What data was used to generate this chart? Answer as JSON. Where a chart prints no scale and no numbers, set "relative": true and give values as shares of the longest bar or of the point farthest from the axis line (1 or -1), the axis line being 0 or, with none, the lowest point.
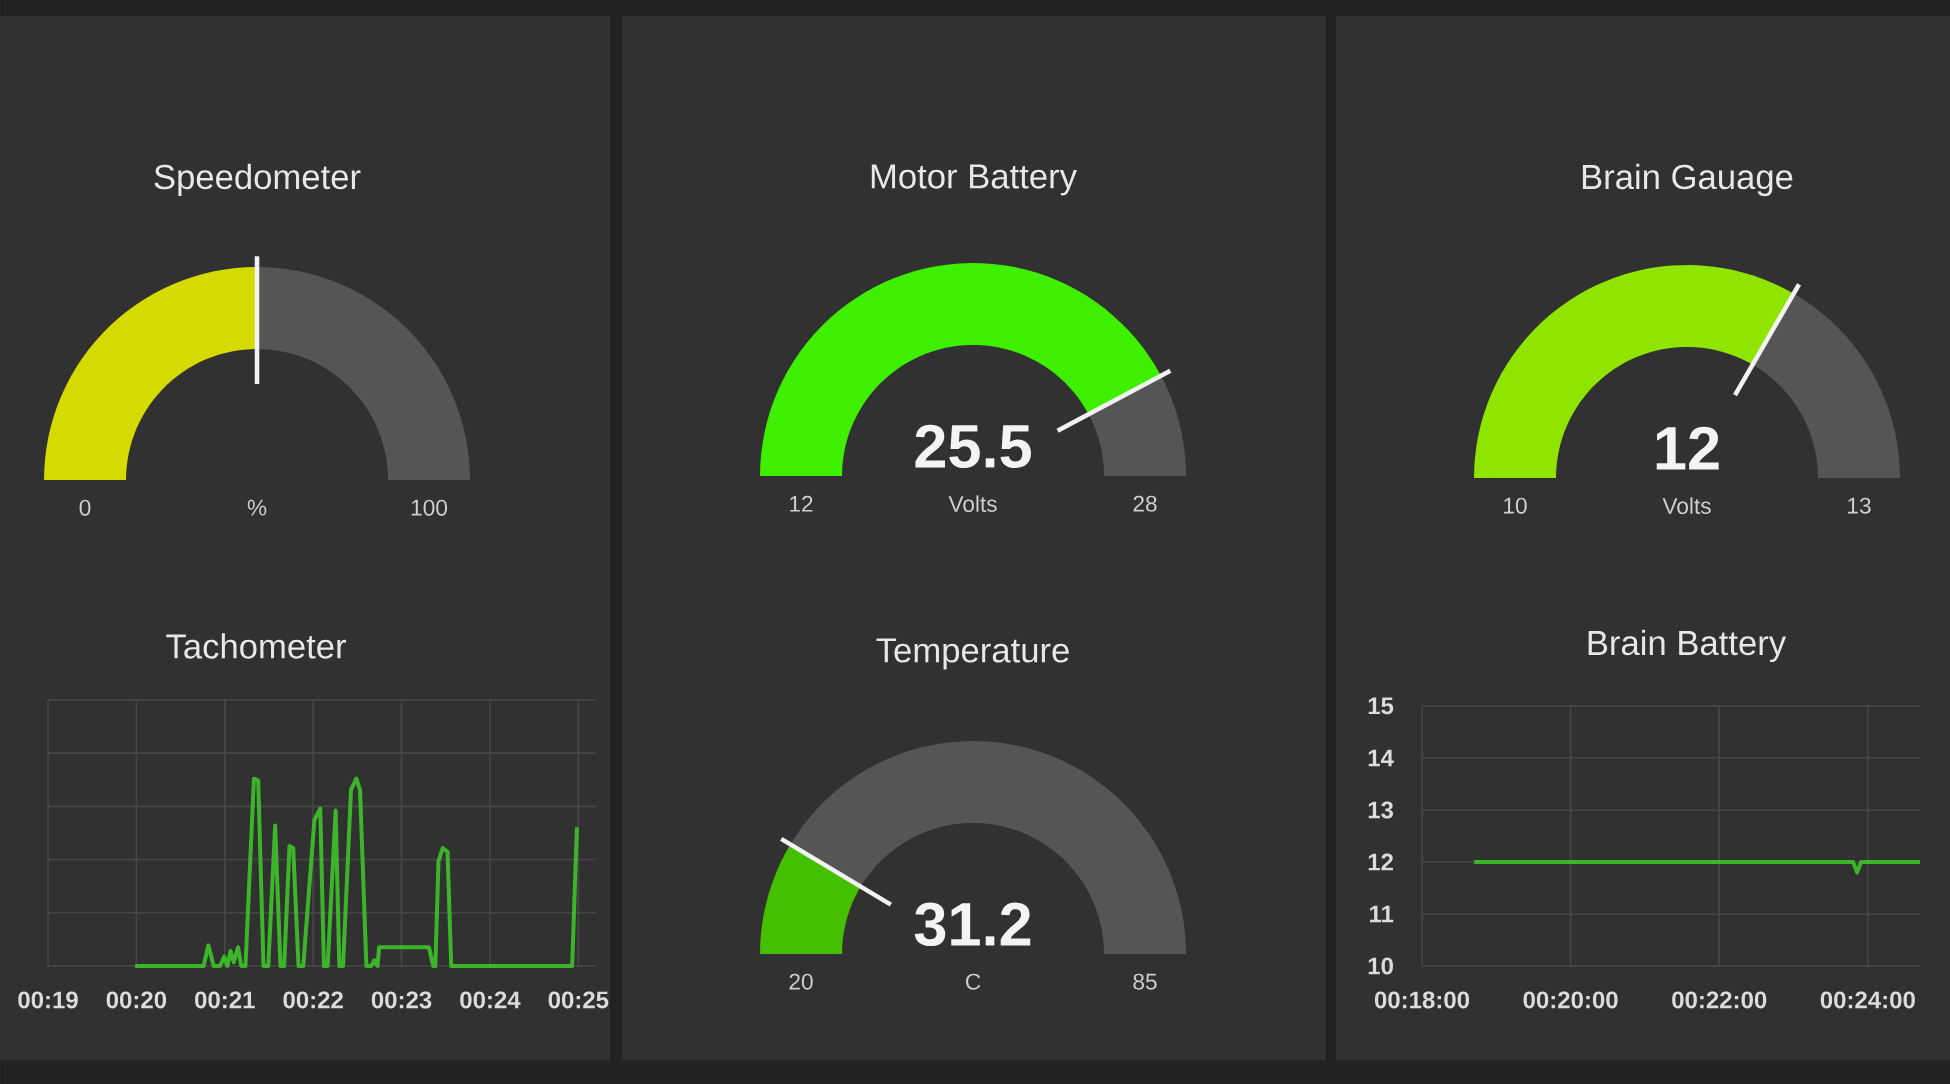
{
  "chart_data": [
    {
      "type": "donut",
      "title": "Speedometer",
      "categories": [
        null,
        null
      ],
      "values": [
        50,
        50
      ],
      "colors": [
        "#d5db00",
        "#555555"
      ],
      "annotations": [
        "0",
        "%",
        "100"
      ]
    },
    {
      "type": "donut",
      "title": "Motor Battery",
      "categories": [
        null,
        null
      ],
      "values": [
        84.4,
        15.6
      ],
      "colors": [
        "#3ef000",
        "#555555"
      ],
      "annotations": [
        "12",
        "Volts",
        "28",
        "25.5"
      ]
    },
    {
      "type": "donut",
      "title": "Brain Gauage",
      "categories": [
        null,
        null
      ],
      "values": [
        66.7,
        33.3
      ],
      "colors": [
        "#8fe500",
        "#555555"
      ],
      "annotations": [
        "10",
        "Volts",
        "13",
        "12"
      ]
    },
    {
      "type": "line",
      "title": "Tachometer",
      "relative": true,
      "grid": true,
      "color": "#3db52a",
      "x": [
        0.3331,
        0.346,
        0.3469,
        0.3479,
        0.3491,
        0.3499,
        0.3505,
        0.3511,
        0.3517,
        0.3525,
        0.3531,
        0.3539,
        0.3555,
        0.3563,
        0.3573,
        0.3582,
        0.3595,
        0.3605,
        0.3612,
        0.3622,
        0.3629,
        0.3639,
        0.3648,
        0.3669,
        0.368,
        0.3687,
        0.3694,
        0.3709,
        0.3716,
        0.3723,
        0.3738,
        0.3748,
        0.3755,
        0.3767,
        0.3776,
        0.3782,
        0.3788,
        0.3791,
        0.3885,
        0.3893,
        0.3897,
        0.3903,
        0.3911,
        0.392,
        0.3927,
        0.4155,
        0.4164
      ],
      "values": [
        0,
        0,
        0.11,
        0,
        0,
        0.05,
        0,
        0.08,
        0.02,
        0.1,
        0,
        0,
        1,
        0.99,
        0,
        0,
        0.75,
        0,
        0,
        0.64,
        0.63,
        0,
        0,
        0.78,
        0.84,
        0,
        0,
        0.83,
        0,
        0,
        0.94,
        1,
        0.94,
        0,
        0,
        0.03,
        0,
        0.1,
        0.1,
        0,
        0,
        0.56,
        0.63,
        0.61,
        0,
        0,
        0.74
      ],
      "xlim": [
        0.31667,
        0.42
      ],
      "xticks": [
        {
          "value": 0.31667,
          "label": "00:19"
        },
        {
          "value": 0.33333,
          "label": "00:20"
        },
        {
          "value": 0.35,
          "label": "00:21"
        },
        {
          "value": 0.36667,
          "label": "00:22"
        },
        {
          "value": 0.38333,
          "label": "00:23"
        },
        {
          "value": 0.4,
          "label": "00:24"
        },
        {
          "value": 0.41667,
          "label": "00:25"
        }
      ]
    },
    {
      "type": "donut",
      "title": "Temperature",
      "categories": [
        null,
        null
      ],
      "values": [
        17.2,
        82.8
      ],
      "colors": [
        "#45c000",
        "#555555"
      ],
      "annotations": [
        "20",
        "C",
        "85",
        "31.2"
      ]
    },
    {
      "type": "line",
      "title": "Brain Battery",
      "grid": true,
      "color": "#3db52a",
      "x": [
        0.3117,
        0.3967,
        0.3976,
        0.3985,
        0.4117
      ],
      "values": [
        12,
        12,
        11.8,
        12,
        12
      ],
      "xlim": [
        0.3,
        0.4117
      ],
      "ylim": [
        10,
        15
      ],
      "yticks": [
        10,
        11,
        12,
        13,
        14,
        15
      ],
      "xticks": [
        {
          "value": 0.3,
          "label": "00:18:00"
        },
        {
          "value": 0.33333,
          "label": "00:20:00"
        },
        {
          "value": 0.36667,
          "label": "00:22:00"
        },
        {
          "value": 0.4,
          "label": "00:24:00"
        }
      ]
    }
  ]
}
